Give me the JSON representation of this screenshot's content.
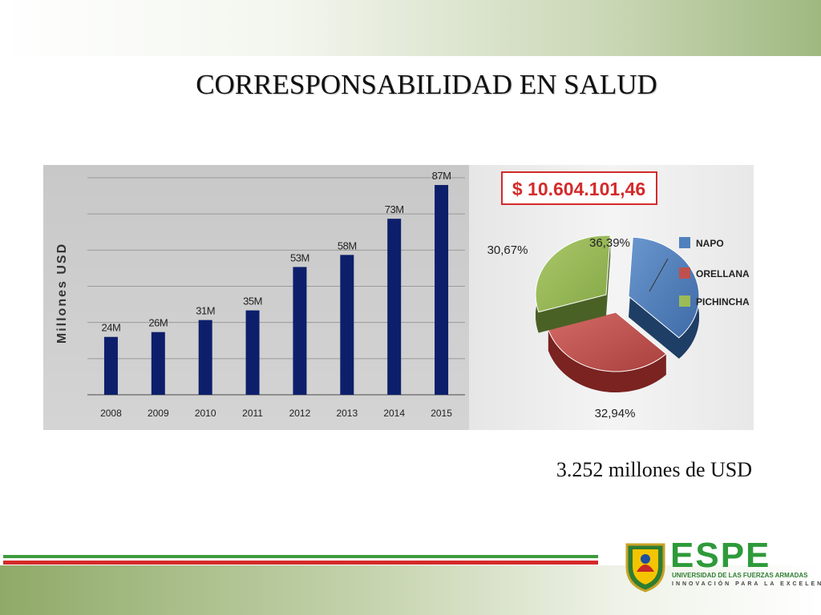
{
  "slide": {
    "title": "CORRESPONSABILIDAD EN SALUD",
    "footnote": "3.252 millones de USD"
  },
  "chart_data": [
    {
      "type": "bar",
      "ylabel": "Millones  USD",
      "categories": [
        "2008",
        "2009",
        "2010",
        "2011",
        "2012",
        "2013",
        "2014",
        "2015"
      ],
      "values": [
        24,
        26,
        31,
        35,
        53,
        58,
        73,
        87
      ],
      "data_labels": [
        "24M",
        "26M",
        "31M",
        "35M",
        "53M",
        "58M",
        "73M",
        "87M"
      ],
      "ylim": [
        0,
        90
      ],
      "grid": true,
      "colors": {
        "bar": "#0d1f6b"
      }
    },
    {
      "type": "pie",
      "title": "$ 10.604.101,46",
      "labels": [
        "NAPO",
        "ORELLANA",
        "PICHINCHA"
      ],
      "values": [
        36.39,
        32.94,
        30.67
      ],
      "value_labels": [
        "36,39%",
        "32,94%",
        "30,67%"
      ],
      "legend": "right",
      "colors": {
        "NAPO": "#4f81bd",
        "ORELLANA": "#c0504d",
        "PICHINCHA": "#9bbb59"
      }
    }
  ],
  "logo": {
    "wordmark": "ESPE",
    "name": "UNIVERSIDAD DE LAS FUERZAS ARMADAS",
    "motto": "INNOVACIÓN PARA LA EXCELENCIA"
  }
}
